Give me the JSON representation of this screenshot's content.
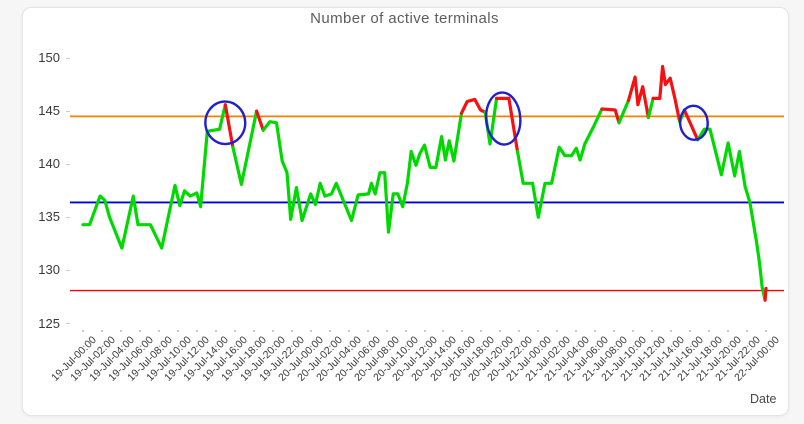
{
  "chart": {
    "title": "Number of active terminals",
    "xlabel": "Date"
  },
  "chart_data": {
    "type": "line",
    "title": "Number of active terminals",
    "xlabel": "Date",
    "ylabel": "",
    "grid": false,
    "legend": "none",
    "y_ticks": [
      125,
      130,
      135,
      140,
      145,
      150
    ],
    "ylim": [
      124,
      151.5
    ],
    "xlim_hours": [
      0,
      72
    ],
    "x_tick_interval_hours": 2,
    "x_tick_labels": [
      "19-Jul-00:00",
      "19-Jul-02:00",
      "19-Jul-04:00",
      "19-Jul-06:00",
      "19-Jul-08:00",
      "19-Jul-10:00",
      "19-Jul-12:00",
      "19-Jul-14:00",
      "19-Jul-16:00",
      "19-Jul-18:00",
      "19-Jul-20:00",
      "19-Jul-22:00",
      "20-Jul-00:00",
      "20-Jul-02:00",
      "20-Jul-04:00",
      "20-Jul-06:00",
      "20-Jul-08:00",
      "20-Jul-10:00",
      "20-Jul-12:00",
      "20-Jul-14:00",
      "20-Jul-16:00",
      "20-Jul-18:00",
      "20-Jul-20:00",
      "20-Jul-22:00",
      "21-Jul-00:00",
      "21-Jul-02:00",
      "21-Jul-04:00",
      "21-Jul-06:00",
      "21-Jul-08:00",
      "21-Jul-10:00",
      "21-Jul-12:00",
      "21-Jul-14:00",
      "21-Jul-16:00",
      "21-Jul-18:00",
      "21-Jul-20:00",
      "21-Jul-22:00",
      "22-Jul-00:00"
    ],
    "thresholds": [
      {
        "name": "upper-limit",
        "value": 144.5,
        "color": "#f08200",
        "width": 1.8
      },
      {
        "name": "middle-reference",
        "value": 136.4,
        "color": "#0000d8",
        "width": 1.8
      },
      {
        "name": "lower-limit",
        "value": 128.1,
        "color": "#f40000",
        "width": 1.4
      }
    ],
    "series": [
      {
        "name": "active-terminals",
        "color_normal": "#00d900",
        "color_alert": "#f51111",
        "points_format": "[hours_from_19-Jul-00:00, value, alert_segment]",
        "points": [
          [
            0,
            134.3,
            0
          ],
          [
            0.7,
            134.3,
            0
          ],
          [
            1.8,
            137,
            0
          ],
          [
            2.3,
            136.6,
            0
          ],
          [
            2.8,
            135,
            0
          ],
          [
            4.1,
            132.1,
            0
          ],
          [
            5.3,
            137,
            0
          ],
          [
            5.8,
            134.3,
            0
          ],
          [
            7.1,
            134.3,
            0
          ],
          [
            8.3,
            132.1,
            0
          ],
          [
            9.7,
            138,
            0
          ],
          [
            10.2,
            136.1,
            0
          ],
          [
            10.7,
            137.5,
            0
          ],
          [
            11.3,
            137,
            0
          ],
          [
            12,
            137.3,
            0
          ],
          [
            12.4,
            136,
            0
          ],
          [
            13.1,
            143.1,
            0
          ],
          [
            14.4,
            143.3,
            0
          ],
          [
            15,
            145.6,
            1
          ],
          [
            15.8,
            141.6,
            0
          ],
          [
            16.7,
            138.1,
            0
          ],
          [
            18.3,
            145,
            1
          ],
          [
            19,
            143.2,
            0
          ],
          [
            19.7,
            144,
            0
          ],
          [
            20.4,
            143.9,
            0
          ],
          [
            21,
            140.3,
            0
          ],
          [
            21.5,
            139.2,
            0
          ],
          [
            21.9,
            134.8,
            0
          ],
          [
            22.5,
            137.8,
            0
          ],
          [
            23.1,
            134.7,
            0
          ],
          [
            24,
            137.2,
            0
          ],
          [
            24.5,
            136.2,
            0
          ],
          [
            25,
            138.2,
            0
          ],
          [
            25.5,
            137,
            0
          ],
          [
            26.2,
            137.2,
            0
          ],
          [
            26.7,
            138.2,
            0
          ],
          [
            27.8,
            135.8,
            0
          ],
          [
            28.3,
            134.7,
            0
          ],
          [
            29,
            137.1,
            0
          ],
          [
            30.1,
            137.2,
            0
          ],
          [
            30.4,
            138.2,
            0
          ],
          [
            30.8,
            137.2,
            0
          ],
          [
            31.3,
            139.2,
            0
          ],
          [
            31.8,
            139.2,
            0
          ],
          [
            32.2,
            133.6,
            0
          ],
          [
            32.7,
            137.2,
            0
          ],
          [
            33.2,
            137.2,
            0
          ],
          [
            33.7,
            136,
            0
          ],
          [
            34.2,
            138.2,
            0
          ],
          [
            34.6,
            141.2,
            0
          ],
          [
            35.1,
            139.9,
            0
          ],
          [
            35.5,
            141,
            0
          ],
          [
            36,
            141.8,
            0
          ],
          [
            36.6,
            139.7,
            0
          ],
          [
            37.2,
            139.7,
            0
          ],
          [
            37.8,
            142.6,
            0
          ],
          [
            38.2,
            140.4,
            0
          ],
          [
            38.6,
            142.2,
            0
          ],
          [
            39.1,
            140.3,
            0
          ],
          [
            39.9,
            144.8,
            1
          ],
          [
            40.5,
            145.9,
            1
          ],
          [
            41.3,
            146.1,
            1
          ],
          [
            41.9,
            145.1,
            1
          ],
          [
            42.4,
            144.9,
            0
          ],
          [
            42.9,
            141.9,
            0
          ],
          [
            43.6,
            146.2,
            1
          ],
          [
            44.9,
            146.2,
            1
          ],
          [
            45.8,
            141.2,
            0
          ],
          [
            46.4,
            138.2,
            0
          ],
          [
            47.4,
            138.2,
            0
          ],
          [
            48,
            135,
            0
          ],
          [
            48.7,
            138.2,
            0
          ],
          [
            49.4,
            138.2,
            0
          ],
          [
            50.2,
            141.6,
            0
          ],
          [
            50.8,
            140.8,
            0
          ],
          [
            51.5,
            140.8,
            0
          ],
          [
            52,
            141.5,
            0
          ],
          [
            52.4,
            140.4,
            0
          ],
          [
            52.9,
            141.9,
            0
          ],
          [
            53.8,
            143.5,
            0
          ],
          [
            54.7,
            145.2,
            1
          ],
          [
            56.1,
            145.1,
            1
          ],
          [
            56.5,
            143.9,
            0
          ],
          [
            57.5,
            146,
            1
          ],
          [
            58.2,
            148.2,
            1
          ],
          [
            58.5,
            145.6,
            1
          ],
          [
            59,
            147.3,
            1
          ],
          [
            59.6,
            144.4,
            0
          ],
          [
            60.1,
            146.2,
            1
          ],
          [
            60.8,
            146.2,
            1
          ],
          [
            61.1,
            149.2,
            1
          ],
          [
            61.4,
            147.5,
            1
          ],
          [
            61.9,
            148.1,
            1
          ],
          [
            62.4,
            146.2,
            1
          ],
          [
            62.9,
            144,
            0
          ],
          [
            63.4,
            145.1,
            1
          ],
          [
            64.8,
            142.3,
            0
          ],
          [
            65.5,
            143.3,
            0
          ],
          [
            66.1,
            143.3,
            0
          ],
          [
            67.3,
            139,
            0
          ],
          [
            68,
            142,
            0
          ],
          [
            68.7,
            138.9,
            0
          ],
          [
            69.2,
            141.2,
            0
          ],
          [
            69.8,
            137.9,
            0
          ],
          [
            70.3,
            136.4,
            0
          ],
          [
            71,
            132.7,
            0
          ],
          [
            71.3,
            130.8,
            0
          ],
          [
            71.6,
            128.4,
            0
          ],
          [
            71.9,
            127.2,
            1
          ],
          [
            72,
            128.3,
            0
          ]
        ]
      }
    ],
    "annotations": [
      {
        "type": "ellipse",
        "name": "alert-circle-1",
        "t": 15.0,
        "value": 143.9,
        "rt": 2.1,
        "rv": 2.0,
        "color": "#2020cc"
      },
      {
        "type": "ellipse",
        "name": "alert-circle-2",
        "t": 44.3,
        "value": 144.3,
        "rt": 1.8,
        "rv": 2.45,
        "color": "#2020cc"
      },
      {
        "type": "ellipse",
        "name": "alert-circle-3",
        "t": 64.4,
        "value": 143.9,
        "rt": 1.45,
        "rv": 1.6,
        "color": "#2020cc"
      }
    ]
  }
}
